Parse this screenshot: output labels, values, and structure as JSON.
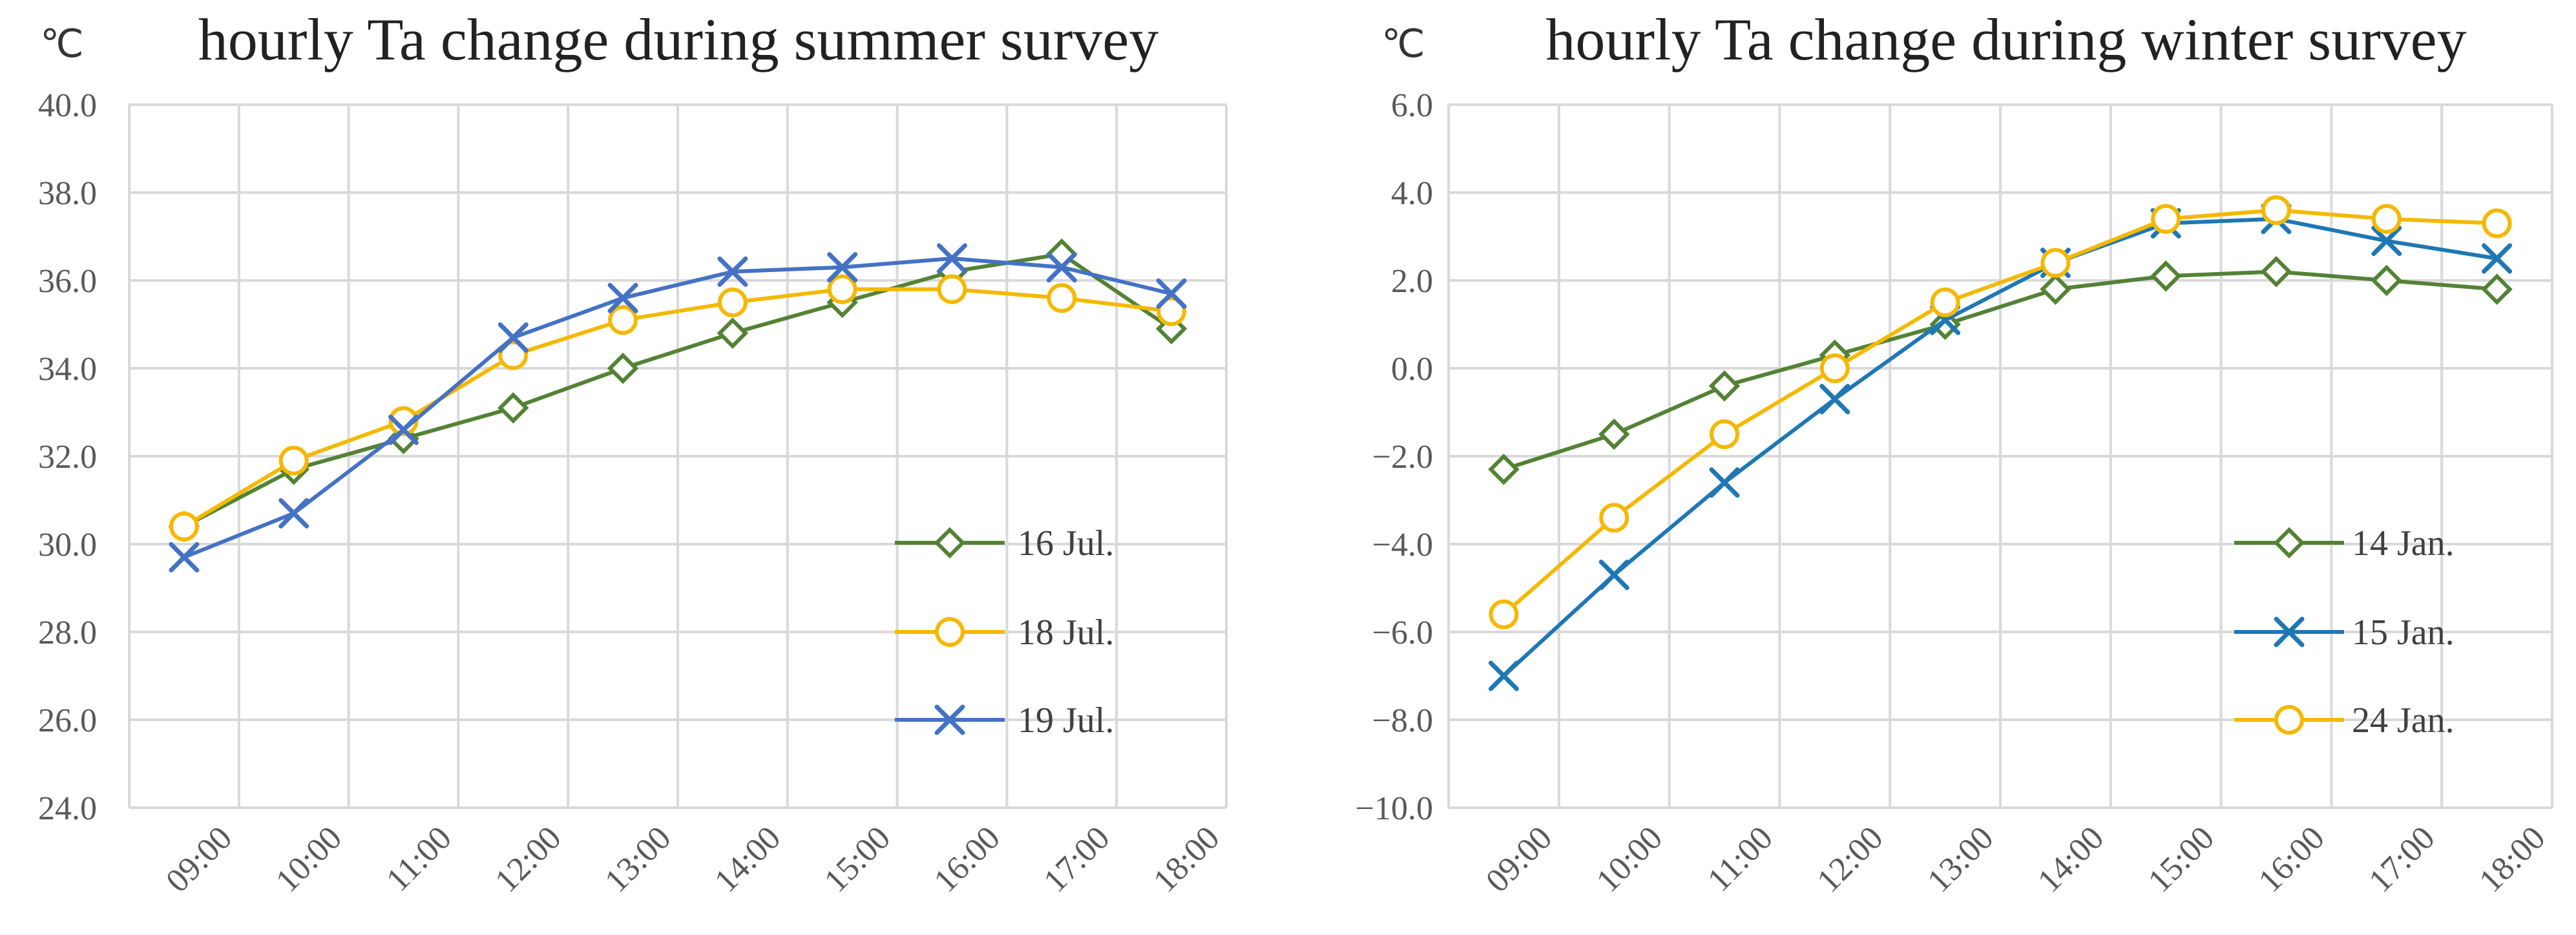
{
  "chart_data": [
    {
      "type": "line",
      "title": "hourly Ta change during summer survey",
      "ylabel": "℃",
      "xlabel": "",
      "categories": [
        "09:00",
        "10:00",
        "11:00",
        "12:00",
        "13:00",
        "14:00",
        "15:00",
        "16:00",
        "17:00",
        "18:00"
      ],
      "ylim": [
        24.0,
        40.0
      ],
      "ystep": 2.0,
      "ydecimals": 1,
      "grid": true,
      "legend_position": "bottom-right",
      "series": [
        {
          "name": "16 Jul.",
          "color": "#548235",
          "marker": "diamond",
          "values": [
            30.4,
            31.7,
            32.4,
            33.1,
            34.0,
            34.8,
            35.5,
            36.2,
            36.6,
            34.9
          ]
        },
        {
          "name": "18 Jul.",
          "color": "#f5b800",
          "marker": "circle",
          "values": [
            30.4,
            31.9,
            32.8,
            34.3,
            35.1,
            35.5,
            35.8,
            35.8,
            35.6,
            35.3
          ]
        },
        {
          "name": "19 Jul.",
          "color": "#4472c4",
          "marker": "x",
          "values": [
            29.7,
            30.7,
            32.6,
            34.7,
            35.6,
            36.2,
            36.3,
            36.5,
            36.3,
            35.7
          ]
        }
      ]
    },
    {
      "type": "line",
      "title": "hourly Ta change during winter survey",
      "ylabel": "℃",
      "xlabel": "",
      "categories": [
        "09:00",
        "10:00",
        "11:00",
        "12:00",
        "13:00",
        "14:00",
        "15:00",
        "16:00",
        "17:00",
        "18:00"
      ],
      "ylim": [
        -10.0,
        6.0
      ],
      "ystep": 2.0,
      "ydecimals": 1,
      "grid": true,
      "legend_position": "bottom-right",
      "series": [
        {
          "name": "14 Jan.",
          "color": "#548235",
          "marker": "diamond",
          "values": [
            -2.3,
            -1.5,
            -0.4,
            0.3,
            1.0,
            1.8,
            2.1,
            2.2,
            2.0,
            1.8
          ]
        },
        {
          "name": "15 Jan.",
          "color": "#1f77b4",
          "marker": "x",
          "values": [
            -7.0,
            -4.7,
            -2.6,
            -0.7,
            1.1,
            2.4,
            3.3,
            3.4,
            2.9,
            2.5
          ]
        },
        {
          "name": "24 Jan.",
          "color": "#f5b800",
          "marker": "circle",
          "values": [
            -5.6,
            -3.4,
            -1.5,
            0.0,
            1.5,
            2.4,
            3.4,
            3.6,
            3.4,
            3.3
          ]
        }
      ]
    }
  ]
}
